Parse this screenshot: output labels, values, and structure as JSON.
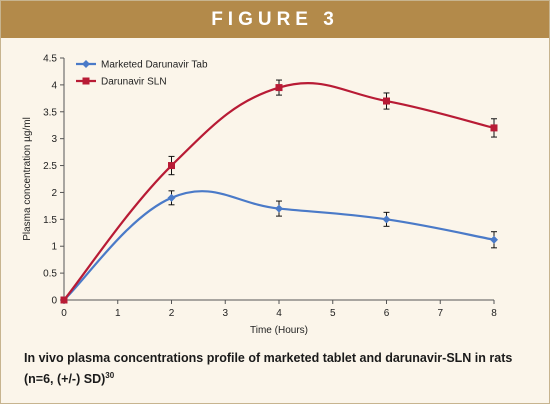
{
  "banner": {
    "title": "FIGURE 3"
  },
  "caption": {
    "text": "In vivo plasma concentrations profile of marketed tablet and darunavir-SLN in rats (n=6, (+/-) SD)",
    "ref": "30"
  },
  "colors": {
    "banner": "#b38a4a",
    "background": "#fbf5ea",
    "series_tab": "#4a7ac8",
    "series_sln": "#b81b35"
  },
  "chart_data": {
    "type": "line",
    "xlabel": "Time (Hours)",
    "ylabel": "Plasma concentration µg/ml",
    "xlim": [
      0,
      8
    ],
    "ylim": [
      0,
      4.5
    ],
    "xticks": [
      0,
      1,
      2,
      3,
      4,
      5,
      6,
      7,
      8
    ],
    "yticks": [
      0,
      0.5,
      1,
      1.5,
      2,
      2.5,
      3,
      3.5,
      4,
      4.5
    ],
    "legend_position": "top-left",
    "grid": false,
    "series": [
      {
        "name": "Marketed Darunavir Tab",
        "color": "#4a7ac8",
        "marker": "diamond",
        "x": [
          0,
          2,
          4,
          6,
          8
        ],
        "y": [
          0,
          1.9,
          1.7,
          1.5,
          1.12
        ],
        "err": [
          0,
          0.13,
          0.14,
          0.13,
          0.15
        ]
      },
      {
        "name": "Darunavir SLN",
        "color": "#b81b35",
        "marker": "square",
        "x": [
          0,
          2,
          4,
          6,
          8
        ],
        "y": [
          0,
          2.5,
          3.95,
          3.7,
          3.2
        ],
        "err": [
          0,
          0.17,
          0.14,
          0.15,
          0.17
        ]
      }
    ]
  }
}
